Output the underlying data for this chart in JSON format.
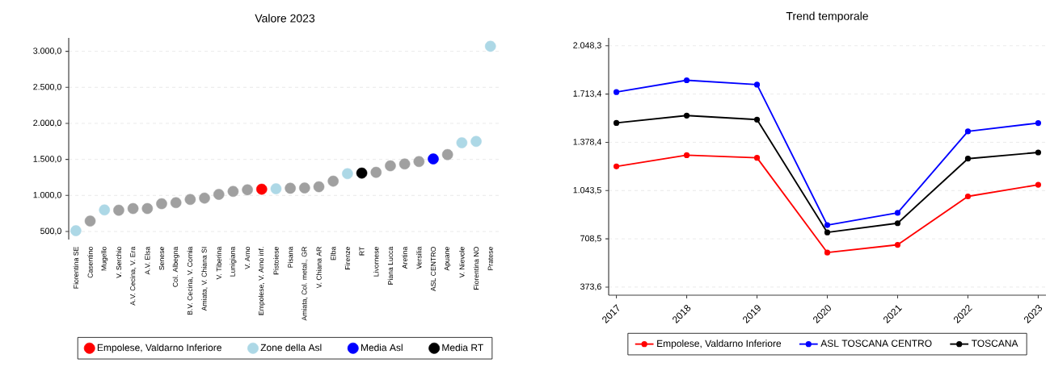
{
  "chart_data": [
    {
      "type": "scatter",
      "title": "Valore 2023",
      "categories": [
        "Fiorentina SE",
        "Casentino",
        "Mugello",
        "V. Serchio",
        "A.V. Cecina, V. Era",
        "A.V. Elsa",
        "Senese",
        "Col. Albegna",
        "B.V. Cecina, V. Cornia",
        "Amiata, V. Chiana SI",
        "V. Tiberina",
        "Lunigiana",
        "V. Arno",
        "Empolese, V. Arno inf.",
        "Pistoiese",
        "Pisana",
        "Amiata, Col. metal., GR",
        "V. Chiana AR",
        "Elba",
        "Firenze",
        "RT",
        "Livornese",
        "Piana Lucca",
        "Aretina",
        "Versilia",
        "ASL CENTRO",
        "Apuane",
        "V. Nievole",
        "Fiorentina NO",
        "Pratese"
      ],
      "ylim": [
        388,
        3186
      ],
      "yticks": [
        {
          "value": 500,
          "label": "500,0"
        },
        {
          "value": 1000,
          "label": "1.000,0"
        },
        {
          "value": 1500,
          "label": "1.500,0"
        },
        {
          "value": 2000,
          "label": "2.000,0"
        },
        {
          "value": 2500,
          "label": "2.500,0"
        },
        {
          "value": 3000,
          "label": "3.000,0"
        }
      ],
      "grid": "y",
      "legend": "bottom",
      "marker": "circle",
      "series": [
        {
          "name": "Empolese, Valdarno Inferiore",
          "color": "#ff0000",
          "values": [
            null,
            null,
            null,
            null,
            null,
            null,
            null,
            null,
            null,
            null,
            null,
            null,
            null,
            1086,
            null,
            null,
            null,
            null,
            null,
            null,
            null,
            null,
            null,
            null,
            null,
            null,
            null,
            null,
            null,
            null
          ]
        },
        {
          "name": "Zone della Asl",
          "color": "#add8e6",
          "values": [
            511,
            null,
            799,
            null,
            null,
            null,
            null,
            null,
            null,
            null,
            null,
            null,
            null,
            null,
            1093,
            null,
            null,
            null,
            null,
            1302,
            null,
            null,
            null,
            null,
            null,
            null,
            null,
            1731,
            1750,
            3070
          ]
        },
        {
          "name": "Media Asl",
          "color": "#0000ff",
          "values": [
            null,
            null,
            null,
            null,
            null,
            null,
            null,
            null,
            null,
            null,
            null,
            null,
            null,
            null,
            null,
            null,
            null,
            null,
            null,
            null,
            null,
            null,
            null,
            null,
            null,
            1507,
            null,
            null,
            null,
            null
          ]
        },
        {
          "name": "Media RT",
          "color": "#000000",
          "values": [
            null,
            null,
            null,
            null,
            null,
            null,
            null,
            null,
            null,
            null,
            null,
            null,
            null,
            null,
            null,
            null,
            null,
            null,
            null,
            null,
            1310,
            null,
            null,
            null,
            null,
            null,
            null,
            null,
            null,
            null
          ]
        },
        {
          "color": "#a0a0a0",
          "values": [
            null,
            645,
            null,
            795,
            818,
            818,
            885,
            900,
            944,
            963,
            1015,
            1056,
            1078,
            null,
            null,
            1100,
            1104,
            1120,
            1198,
            null,
            null,
            1321,
            1411,
            1437,
            1470,
            null,
            1567,
            null,
            null,
            null
          ]
        }
      ]
    },
    {
      "type": "line",
      "title": "Trend temporale",
      "x": [
        2017,
        2018,
        2019,
        2020,
        2021,
        2022,
        2023
      ],
      "xlim": [
        2016.89,
        2023.11
      ],
      "xticks": [
        2017,
        2018,
        2019,
        2020,
        2021,
        2022,
        2023
      ],
      "ylim": [
        317.5,
        2103
      ],
      "yticks": [
        {
          "value": 373.6,
          "label": "373,6"
        },
        {
          "value": 708.5,
          "label": "708,5"
        },
        {
          "value": 1043.5,
          "label": "1.043,5"
        },
        {
          "value": 1378.4,
          "label": "1.378,4"
        },
        {
          "value": 1713.4,
          "label": "1.713,4"
        },
        {
          "value": 2048.3,
          "label": "2.048,3"
        }
      ],
      "grid": "y",
      "legend": "bottom",
      "marker": "circle",
      "series": [
        {
          "name": "Empolese, Valdarno Inferiore",
          "color": "#ff0000",
          "values": [
            1211,
            1289,
            1271,
            613,
            667,
            1003,
            1084
          ]
        },
        {
          "name": "ASL TOSCANA CENTRO",
          "color": "#0000ff",
          "values": [
            1727,
            1809,
            1779,
            804,
            889,
            1454,
            1512
          ]
        },
        {
          "name": "TOSCANA",
          "color": "#000000",
          "values": [
            1513,
            1564,
            1536,
            753,
            817,
            1265,
            1308
          ]
        }
      ]
    }
  ]
}
